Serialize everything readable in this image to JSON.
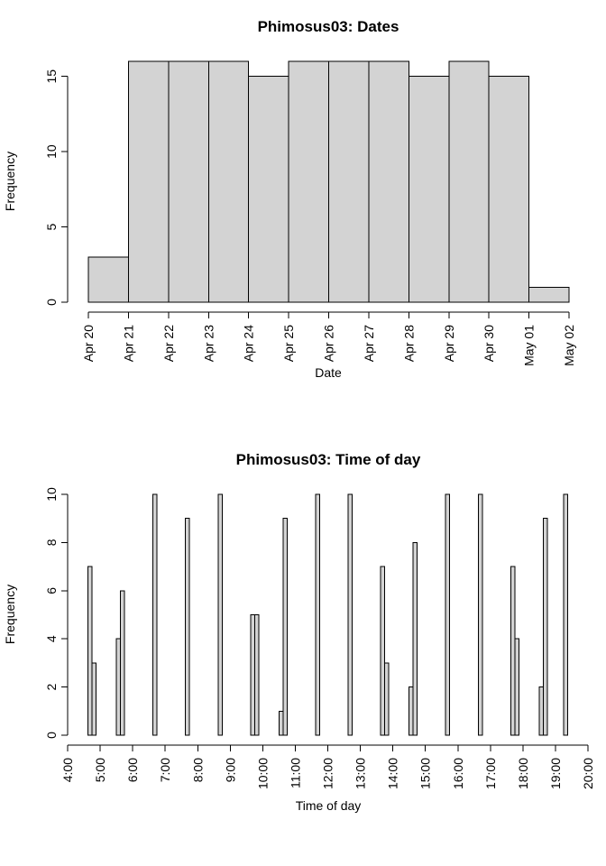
{
  "chart_data": [
    {
      "type": "bar",
      "title": "Phimosus03: Dates",
      "xlabel": "Date",
      "ylabel": "Frequency",
      "ylim": [
        0,
        16
      ],
      "yticks": [
        0,
        5,
        10,
        15
      ],
      "x_tick_labels": [
        "Apr 20",
        "Apr 21",
        "Apr 22",
        "Apr 23",
        "Apr 24",
        "Apr 25",
        "Apr 26",
        "Apr 27",
        "Apr 28",
        "Apr 29",
        "Apr 30",
        "May 01",
        "May 02"
      ],
      "values": [
        3,
        16,
        16,
        16,
        15,
        16,
        16,
        16,
        15,
        16,
        15,
        1
      ],
      "grid": false,
      "legend": false
    },
    {
      "type": "bar",
      "title": "Phimosus03: Time of day",
      "xlabel": "Time of day",
      "ylabel": "Frequency",
      "ylim": [
        0,
        10
      ],
      "yticks": [
        0,
        2,
        4,
        6,
        8,
        10
      ],
      "x_tick_labels": [
        "4:00",
        "5:00",
        "6:00",
        "7:00",
        "8:00",
        "9:00",
        "10:00",
        "11:00",
        "12:00",
        "13:00",
        "14:00",
        "15:00",
        "16:00",
        "17:00",
        "18:00",
        "19:00",
        "20:00"
      ],
      "xlim_hours": [
        4,
        20
      ],
      "bin_width_hours": 0.125,
      "first_bin_start_hours": 4.625,
      "bins": [
        {
          "start": "4:37:30",
          "count": 7
        },
        {
          "start": "4:45:00",
          "count": 3
        },
        {
          "start": "5:30:00",
          "count": 4
        },
        {
          "start": "5:37:30",
          "count": 6
        },
        {
          "start": "6:37:30",
          "count": 10
        },
        {
          "start": "7:37:30",
          "count": 9
        },
        {
          "start": "8:37:30",
          "count": 10
        },
        {
          "start": "9:37:30",
          "count": 5
        },
        {
          "start": "9:45:00",
          "count": 5
        },
        {
          "start": "10:30:00",
          "count": 1
        },
        {
          "start": "10:37:30",
          "count": 9
        },
        {
          "start": "11:37:30",
          "count": 10
        },
        {
          "start": "12:37:30",
          "count": 10
        },
        {
          "start": "13:37:30",
          "count": 7
        },
        {
          "start": "13:45:00",
          "count": 3
        },
        {
          "start": "14:30:00",
          "count": 2
        },
        {
          "start": "14:37:30",
          "count": 8
        },
        {
          "start": "15:37:30",
          "count": 10
        },
        {
          "start": "16:37:30",
          "count": 10
        },
        {
          "start": "17:37:30",
          "count": 7
        },
        {
          "start": "17:45:00",
          "count": 4
        },
        {
          "start": "18:30:00",
          "count": 2
        },
        {
          "start": "18:37:30",
          "count": 9
        },
        {
          "start": "19:15:00",
          "count": 10
        }
      ],
      "grid": false,
      "legend": false
    }
  ]
}
